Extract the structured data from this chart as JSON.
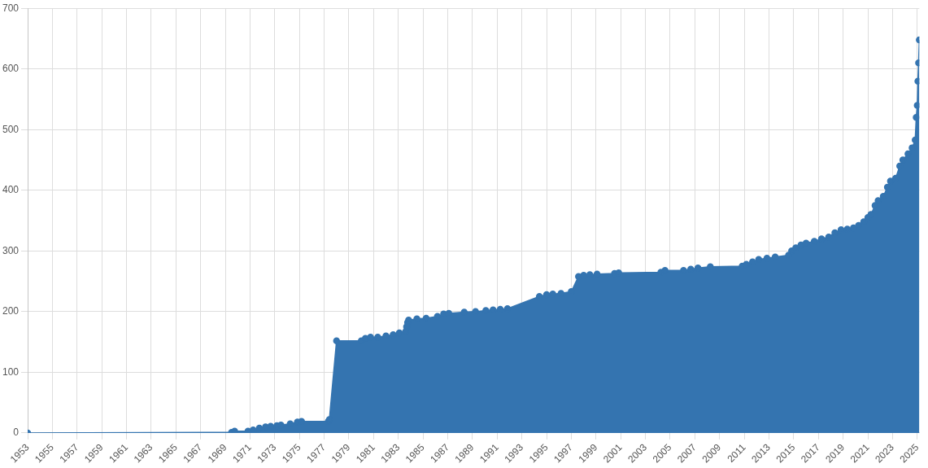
{
  "chart_data": {
    "type": "area",
    "marker": "circle",
    "grid": true,
    "legend": false,
    "xlim": [
      "1953",
      "2025-03"
    ],
    "ylim": [
      0,
      700
    ],
    "yticks": [
      0,
      100,
      200,
      300,
      400,
      500,
      600,
      700
    ],
    "xticks": [
      "1953",
      "1955",
      "1957",
      "1959",
      "1961",
      "1963",
      "1965",
      "1967",
      "1969",
      "1971",
      "1973",
      "1975",
      "1977",
      "1979",
      "1981",
      "1983",
      "1985",
      "1987",
      "1989",
      "1991",
      "1993",
      "1995",
      "1997",
      "1999",
      "2001",
      "2003",
      "2005",
      "2007",
      "2009",
      "2011",
      "2013",
      "2015",
      "2017",
      "2019",
      "2021",
      "2023",
      "2025"
    ],
    "x": [
      "1953",
      "1969-07",
      "1969-10",
      "1970-11",
      "1971-04",
      "1971-10",
      "1972-04",
      "1972-09",
      "1973-03",
      "1973-07",
      "1974-04",
      "1974-11",
      "1975-03",
      "1977-05",
      "1977-06",
      "1978-01",
      "1980-01",
      "1980-05",
      "1980-10",
      "1981-05",
      "1982-01",
      "1982-08",
      "1983-02",
      "1983-08",
      "1983-09",
      "1983-10",
      "1983-11",
      "1984-07",
      "1985-04",
      "1986-03",
      "1986-09",
      "1987-02",
      "1988-05",
      "1989-04",
      "1990-02",
      "1990-09",
      "1991-04",
      "1991-11",
      "1994-06",
      "1995-01",
      "1995-07",
      "1996-03",
      "1997-01",
      "1997-08",
      "1998-01",
      "1998-07",
      "1999-02",
      "2000-07",
      "2000-11",
      "2004-04",
      "2004-08",
      "2006-02",
      "2006-09",
      "2007-04",
      "2008-04",
      "2010-11",
      "2011-03",
      "2011-09",
      "2012-03",
      "2012-11",
      "2013-07",
      "2014-08",
      "2014-11",
      "2015-03",
      "2015-08",
      "2016-01",
      "2016-09",
      "2017-04",
      "2017-11",
      "2018-05",
      "2018-11",
      "2019-05",
      "2019-11",
      "2020-04",
      "2020-09",
      "2021-01",
      "2021-04",
      "2021-08",
      "2021-11",
      "2022-04",
      "2022-08",
      "2022-11",
      "2023-04",
      "2023-08",
      "2023-11",
      "2024-04",
      "2024-08",
      "2024-11",
      "2024-12",
      "2025-01",
      "2025-01-20",
      "2025-02-10",
      "2025-03"
    ],
    "series": [
      {
        "color": "#3474b0",
        "values": [
          0,
          1,
          3,
          3,
          5,
          8,
          10,
          11,
          12,
          13,
          15,
          18,
          19,
          19,
          22,
          152,
          152,
          156,
          158,
          158,
          160,
          162,
          165,
          167,
          175,
          182,
          186,
          188,
          189,
          192,
          196,
          197,
          199,
          200,
          202,
          203,
          204,
          205,
          225,
          228,
          229,
          230,
          233,
          258,
          260,
          261,
          262,
          263,
          264,
          265,
          268,
          268,
          270,
          272,
          274,
          275,
          278,
          282,
          286,
          288,
          290,
          293,
          300,
          305,
          310,
          313,
          316,
          320,
          323,
          330,
          335,
          336,
          338,
          342,
          348,
          355,
          360,
          375,
          383,
          390,
          405,
          415,
          420,
          440,
          450,
          460,
          470,
          483,
          520,
          540,
          580,
          610,
          648
        ]
      }
    ]
  }
}
